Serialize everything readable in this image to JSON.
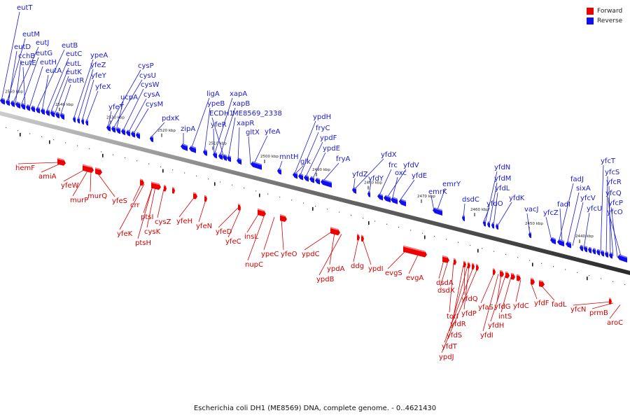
{
  "caption": "Escherichia coli DH1 (ME8569) DNA, complete genome. - 0..4621430",
  "legend": {
    "forward": {
      "label": "Forward",
      "color": "#ee0000"
    },
    "reverse": {
      "label": "Reverse",
      "color": "#1010ee"
    }
  },
  "ticks": [
    "2550 kbp",
    "2540 kbp",
    "2530 kbp",
    "2520 kbp",
    "2510 kbp",
    "2500 kbp",
    "2490 kbp",
    "2480 kbp",
    "2470 kbp",
    "2460 kbp",
    "2450 kbp",
    "2440 kbp"
  ],
  "reverse_genes": [
    "eutT",
    "eutM",
    "eutD",
    "eutJ",
    "cchB",
    "eutG",
    "eutE",
    "eutH",
    "eutB",
    "eutA",
    "eutC",
    "eutL",
    "eutK",
    "eutR",
    "ypeA",
    "yfeZ",
    "yfeY",
    "yfeX",
    "cysP",
    "cysU",
    "ucpA",
    "cysW",
    "yfeT",
    "cysA",
    "cysM",
    "pdxK",
    "zipA",
    "ligA",
    "xapA",
    "ypeB",
    "xapB",
    "ECDH1",
    "ME8569_2338",
    "yfeR",
    "xapR",
    "gltX",
    "yfeA",
    "ypdH",
    "fryC",
    "mntH",
    "ypdF",
    "glk",
    "ypdE",
    "fryA",
    "yfdX",
    "yfdZ",
    "frc",
    "yfdV",
    "yfdY",
    "oxc",
    "yfdE",
    "emrY",
    "emrK",
    "yfdN",
    "dsdC",
    "yfdM",
    "yfdL",
    "yfdO",
    "yfdK",
    "vacJ",
    "yfcT",
    "yfcS",
    "fadJ",
    "yfcR",
    "sixA",
    "fadI",
    "yfcQ",
    "yfcV",
    "yfcP",
    "yfcZ",
    "yfcU",
    "yfcO"
  ],
  "forward_genes": [
    "hemF",
    "amiA",
    "yfeW",
    "murQ",
    "murP",
    "yfeS",
    "crr",
    "ptsI",
    "yfeK",
    "cysZ",
    "cysK",
    "ptsH",
    "yfeH",
    "yfeN",
    "yfeD",
    "yfeC",
    "insL",
    "nupC",
    "ypeC",
    "yfeO",
    "ypdC",
    "ypdA",
    "ypdB",
    "ddg",
    "ypdI",
    "evgS",
    "evgA",
    "dsdA",
    "dsdX",
    "torI",
    "yfdQ",
    "yfdR",
    "yfdP",
    "yfdS",
    "yfdT",
    "ypdJ",
    "yfaS",
    "yfdG",
    "yfdH",
    "intS",
    "yfdI",
    "yfdC",
    "yfdF",
    "fadL",
    "yfcN",
    "prmB",
    "aroC"
  ]
}
